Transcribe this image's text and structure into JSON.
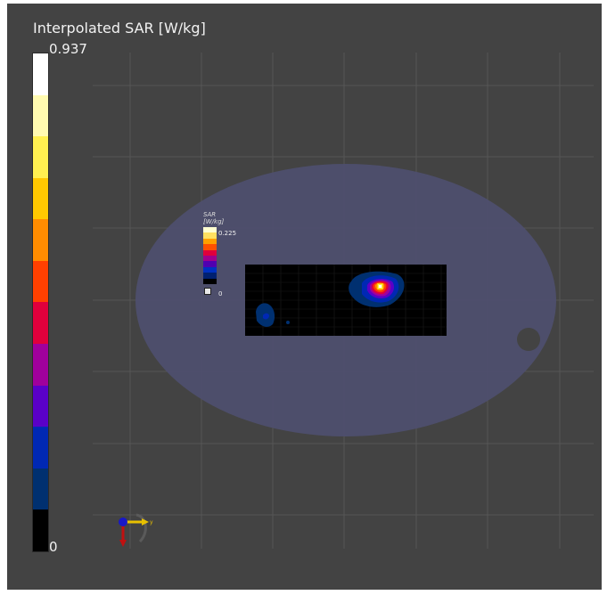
{
  "colorbar": {
    "title": "Interpolated SAR [W/kg]",
    "max": "0.937",
    "min": "0",
    "colors": [
      "#ffffff",
      "#fffab0",
      "#fff050",
      "#ffc800",
      "#ff8c00",
      "#ff4000",
      "#e0003c",
      "#a0009c",
      "#5a00c8",
      "#0028b4",
      "#003070",
      "#000000"
    ]
  },
  "inset_colorbar": {
    "title_line1": "SAR",
    "title_line2": "[W/kg]",
    "max": "0.225",
    "min": "0",
    "colors": [
      "#ffffd0",
      "#ffe060",
      "#ffa000",
      "#ff5000",
      "#e0003c",
      "#a0008c",
      "#5000b0",
      "#0030c0",
      "#002070",
      "#000000"
    ]
  },
  "axes_widget": {
    "y_axis_label": "y"
  },
  "colors": {
    "background": "#434343",
    "phantom": "#4e4f6e",
    "grid": "#575757"
  }
}
